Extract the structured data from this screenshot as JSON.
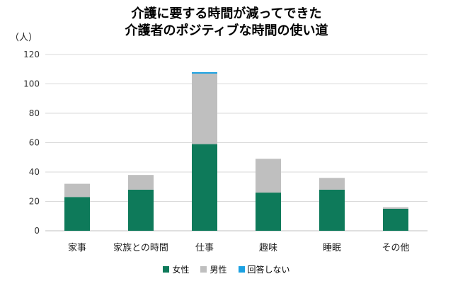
{
  "chart_data": {
    "type": "bar",
    "stacked": true,
    "title_line1": "介護に要する時間が減ってできた",
    "title_line2": "介護者のポジティブな時間の使い道",
    "ylabel": "（人）",
    "ylim": [
      0,
      120
    ],
    "yticks": [
      0,
      20,
      40,
      60,
      80,
      100,
      120
    ],
    "grid": true,
    "legend_position": "bottom",
    "categories": [
      "家事",
      "家族との時間",
      "仕事",
      "趣味",
      "睡眠",
      "その他"
    ],
    "series": [
      {
        "name": "女性",
        "color": "#0E7A5A",
        "values": [
          23,
          28,
          59,
          26,
          28,
          15
        ]
      },
      {
        "name": "男性",
        "color": "#BFBFBF",
        "values": [
          9,
          10,
          48,
          23,
          8,
          1
        ]
      },
      {
        "name": "回答しない",
        "color": "#1BA1E2",
        "values": [
          0,
          0,
          1,
          0,
          0,
          0
        ]
      }
    ]
  }
}
